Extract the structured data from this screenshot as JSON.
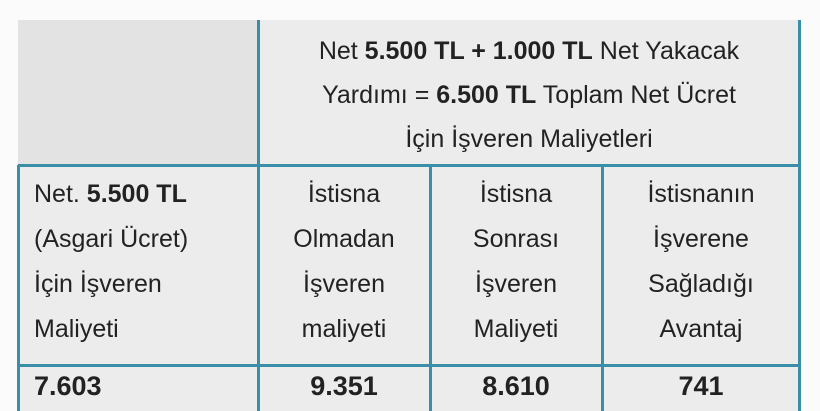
{
  "top": {
    "lines": [
      [
        {
          "text": "Net "
        },
        {
          "text": "5.500 TL + 1.000 TL",
          "bold": true
        },
        {
          "text": " Net Yakacak"
        }
      ],
      [
        {
          "text": "Yardımı = "
        },
        {
          "text": "6.500 TL",
          "bold": true
        },
        {
          "text": " Toplam Net Ücret"
        }
      ],
      "İçin İşveren Maliyetleri"
    ]
  },
  "columns": [
    {
      "lines": [
        [
          {
            "text": "Net. "
          },
          {
            "text": "5.500 TL",
            "bold": true
          }
        ],
        "(Asgari Ücret)",
        "İçin İşveren",
        "Maliyeti"
      ],
      "value": "7.603"
    },
    {
      "lines": [
        "İstisna",
        "Olmadan",
        "İşveren",
        "maliyeti"
      ],
      "value": "9.351"
    },
    {
      "lines": [
        "İstisna",
        "Sonrası",
        "İşveren",
        "Maliyeti"
      ],
      "value": "8.610"
    },
    {
      "lines": [
        "İstisnanın",
        "İşverene",
        "Sağladığı",
        "Avantaj"
      ],
      "value": "741"
    }
  ]
}
